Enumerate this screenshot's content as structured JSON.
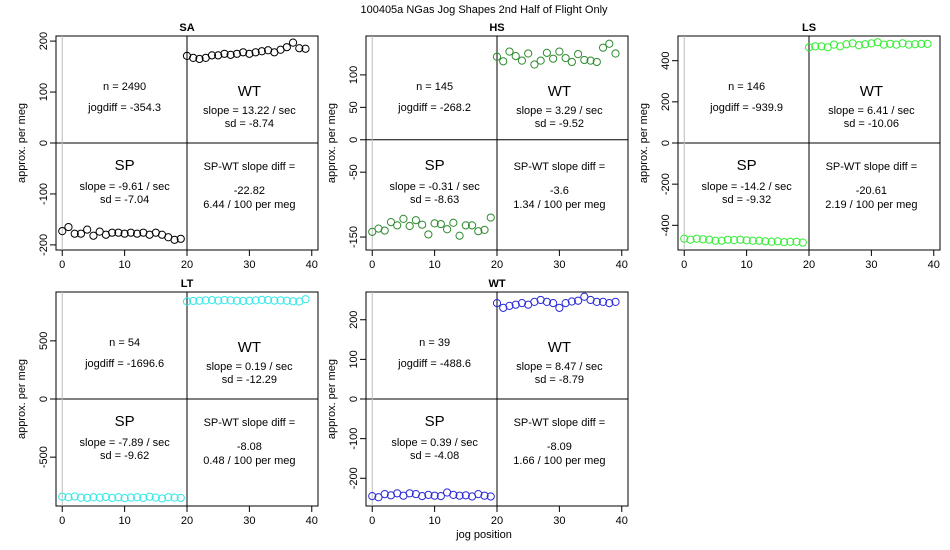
{
  "figure": {
    "suptitle": "100405a   NGas Jog Shapes 2nd Half of Flight Only",
    "xlabel": "jog position"
  },
  "chart_data": [
    {
      "type": "scatter",
      "title": "SA",
      "ylabel": "approx. per meg",
      "color": "#000000",
      "xlim": [
        -1,
        41
      ],
      "ylim": [
        -210,
        210
      ],
      "xticks": [
        0,
        10,
        20,
        30,
        40
      ],
      "yticks": [
        -200,
        -100,
        0,
        100,
        200
      ],
      "x": [
        0,
        1,
        2,
        3,
        4,
        5,
        6,
        7,
        8,
        9,
        10,
        11,
        12,
        13,
        14,
        15,
        16,
        17,
        18,
        19,
        20,
        21,
        22,
        23,
        24,
        25,
        26,
        27,
        28,
        29,
        30,
        31,
        32,
        33,
        34,
        35,
        36,
        37,
        38,
        39
      ],
      "y": [
        -173,
        -165,
        -178,
        -178,
        -170,
        -182,
        -174,
        -180,
        -176,
        -176,
        -178,
        -176,
        -178,
        -176,
        -180,
        -176,
        -180,
        -185,
        -190,
        -188,
        171,
        167,
        165,
        167,
        172,
        172,
        175,
        173,
        175,
        178,
        175,
        178,
        180,
        182,
        178,
        183,
        188,
        197,
        186,
        185
      ],
      "annotations": {
        "n": "n = 2490",
        "jogdiff": "jogdiff = -354.3",
        "wt_label": "WT",
        "wt_slope": "slope = 13.22 / sec",
        "wt_sd": "sd = -8.74",
        "sp_label": "SP",
        "sp_slope": "slope = -9.61 / sec",
        "sp_sd": "sd = -7.04",
        "diff_label": "SP-WT slope diff =",
        "diff_value": "-22.82",
        "diff_rate": "6.44 / 100 per meg"
      }
    },
    {
      "type": "scatter",
      "title": "HS",
      "ylabel": "approx. per meg",
      "color": "#2e8b2e",
      "xlim": [
        -1,
        41
      ],
      "ylim": [
        -170,
        160
      ],
      "xticks": [
        0,
        10,
        20,
        30,
        40
      ],
      "yticks": [
        -150,
        -50,
        0,
        50,
        100
      ],
      "x": [
        0,
        1,
        2,
        3,
        4,
        5,
        6,
        7,
        8,
        9,
        10,
        11,
        12,
        13,
        14,
        15,
        16,
        17,
        18,
        19,
        20,
        21,
        22,
        23,
        24,
        25,
        26,
        27,
        28,
        29,
        30,
        31,
        32,
        33,
        34,
        35,
        36,
        37,
        38,
        39
      ],
      "y": [
        -142,
        -137,
        -140,
        -127,
        -132,
        -122,
        -133,
        -124,
        -131,
        -146,
        -129,
        -130,
        -138,
        -128,
        -148,
        -132,
        -132,
        -141,
        -139,
        -120,
        128,
        121,
        136,
        129,
        122,
        133,
        116,
        122,
        134,
        125,
        136,
        126,
        120,
        132,
        123,
        122,
        120,
        142,
        148,
        133
      ],
      "annotations": {
        "n": "n = 145",
        "jogdiff": "jogdiff = -268.2",
        "wt_label": "WT",
        "wt_slope": "slope = 3.29 / sec",
        "wt_sd": "sd = -9.52",
        "sp_label": "SP",
        "sp_slope": "slope = -0.31 / sec",
        "sp_sd": "sd = -8.63",
        "diff_label": "SP-WT slope diff =",
        "diff_value": "-3.6",
        "diff_rate": "1.34 / 100 per meg"
      }
    },
    {
      "type": "scatter",
      "title": "LS",
      "ylabel": "approx. per meg",
      "color": "#33ee33",
      "xlim": [
        -1,
        41
      ],
      "ylim": [
        -520,
        520
      ],
      "xticks": [
        0,
        10,
        20,
        30,
        40
      ],
      "yticks": [
        -400,
        -200,
        0,
        200,
        400
      ],
      "x": [
        0,
        1,
        2,
        3,
        4,
        5,
        6,
        7,
        8,
        9,
        10,
        11,
        12,
        13,
        14,
        15,
        16,
        17,
        18,
        19,
        20,
        21,
        22,
        23,
        24,
        25,
        26,
        27,
        28,
        29,
        30,
        31,
        32,
        33,
        34,
        35,
        36,
        37,
        38,
        39
      ],
      "y": [
        -465,
        -470,
        -465,
        -468,
        -470,
        -475,
        -475,
        -470,
        -472,
        -470,
        -473,
        -475,
        -475,
        -478,
        -480,
        -478,
        -482,
        -480,
        -480,
        -484,
        465,
        470,
        470,
        465,
        478,
        470,
        480,
        484,
        475,
        480,
        484,
        490,
        478,
        482,
        478,
        484,
        478,
        480,
        482,
        482
      ],
      "annotations": {
        "n": "n = 146",
        "jogdiff": "jogdiff = -939.9",
        "wt_label": "WT",
        "wt_slope": "slope = 6.41 / sec",
        "wt_sd": "sd = -10.06",
        "sp_label": "SP",
        "sp_slope": "slope = -14.2 / sec",
        "sp_sd": "sd = -9.32",
        "diff_label": "SP-WT slope diff =",
        "diff_value": "-20.61",
        "diff_rate": "2.19 / 100 per meg"
      }
    },
    {
      "type": "scatter",
      "title": "LT",
      "ylabel": "approx. per meg",
      "color": "#33e8e8",
      "xlim": [
        -1,
        41
      ],
      "ylim": [
        -920,
        920
      ],
      "xticks": [
        0,
        10,
        20,
        30,
        40
      ],
      "yticks": [
        -500,
        0,
        500
      ],
      "x": [
        0,
        1,
        2,
        3,
        4,
        5,
        6,
        7,
        8,
        9,
        10,
        11,
        12,
        13,
        14,
        15,
        16,
        17,
        18,
        19,
        20,
        21,
        22,
        23,
        24,
        25,
        26,
        27,
        28,
        29,
        30,
        31,
        32,
        33,
        34,
        35,
        36,
        37,
        38,
        39
      ],
      "y": [
        -840,
        -845,
        -838,
        -848,
        -850,
        -845,
        -848,
        -842,
        -850,
        -845,
        -852,
        -848,
        -845,
        -850,
        -840,
        -848,
        -855,
        -845,
        -848,
        -850,
        838,
        843,
        845,
        848,
        850,
        846,
        850,
        848,
        845,
        843,
        845,
        848,
        852,
        850,
        846,
        848,
        845,
        840,
        838,
        858
      ],
      "annotations": {
        "n": "n = 54",
        "jogdiff": "jogdiff = -1696.6",
        "wt_label": "WT",
        "wt_slope": "slope = 0.19 / sec",
        "wt_sd": "sd = -12.29",
        "sp_label": "SP",
        "sp_slope": "slope = -7.89 / sec",
        "sp_sd": "sd = -9.62",
        "diff_label": "SP-WT slope diff =",
        "diff_value": "-8.08",
        "diff_rate": "0.48 / 100 per meg"
      }
    },
    {
      "type": "scatter",
      "title": "WT",
      "ylabel": "approx. per meg",
      "color": "#2a2ad8",
      "xlim": [
        -1,
        41
      ],
      "ylim": [
        -270,
        270
      ],
      "xticks": [
        0,
        10,
        20,
        30,
        40
      ],
      "yticks": [
        -200,
        -100,
        0,
        100,
        200
      ],
      "x": [
        0,
        1,
        2,
        3,
        4,
        5,
        6,
        7,
        8,
        9,
        10,
        11,
        12,
        13,
        14,
        15,
        16,
        17,
        18,
        19,
        20,
        21,
        22,
        23,
        24,
        25,
        26,
        27,
        28,
        29,
        30,
        31,
        32,
        33,
        34,
        35,
        36,
        37,
        38,
        39
      ],
      "y": [
        -245,
        -248,
        -240,
        -243,
        -238,
        -244,
        -238,
        -240,
        -245,
        -242,
        -244,
        -245,
        -236,
        -242,
        -244,
        -243,
        -246,
        -240,
        -244,
        -246,
        242,
        230,
        235,
        238,
        242,
        238,
        245,
        250,
        245,
        242,
        230,
        242,
        246,
        248,
        258,
        250,
        245,
        245,
        242,
        245
      ],
      "annotations": {
        "n": "n = 39",
        "jogdiff": "jogdiff = -488.6",
        "wt_label": "WT",
        "wt_slope": "slope = 8.47 / sec",
        "wt_sd": "sd = -8.79",
        "sp_label": "SP",
        "sp_slope": "slope = 0.39 / sec",
        "sp_sd": "sd = -4.08",
        "diff_label": "SP-WT slope diff =",
        "diff_value": "-8.09",
        "diff_rate": "1.66 / 100 per meg"
      }
    }
  ]
}
